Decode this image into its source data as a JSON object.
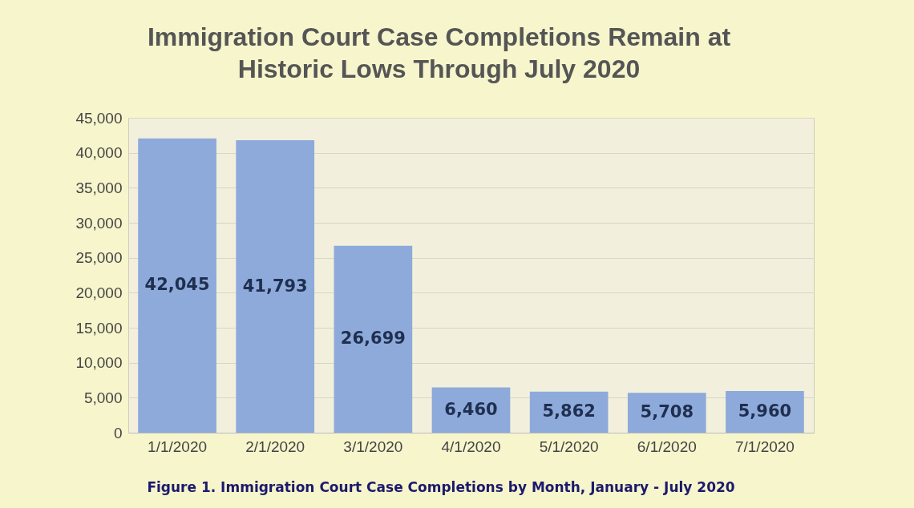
{
  "chart_data": {
    "type": "bar",
    "title": [
      "Immigration Court Case Completions Remain at",
      "Historic Lows Through July 2020"
    ],
    "categories": [
      "1/1/2020",
      "2/1/2020",
      "3/1/2020",
      "4/1/2020",
      "5/1/2020",
      "6/1/2020",
      "7/1/2020"
    ],
    "values": [
      42045,
      41793,
      26699,
      6460,
      5862,
      5708,
      5960
    ],
    "color": "#8eaadb",
    "value_labels": [
      "42,045",
      "41,793",
      "26,699",
      "6,460",
      "5,862",
      "5,708",
      "5,960"
    ],
    "ylim": [
      0,
      45000
    ],
    "yticks": [
      0,
      {
        "value": 5000,
        "label": "5,000"
      },
      {
        "value": 10000,
        "label": "10,000"
      },
      {
        "value": 15000,
        "label": "15,000"
      },
      {
        "value": 20000,
        "label": "20,000"
      },
      {
        "value": 25000,
        "label": "25,000"
      },
      {
        "value": 30000,
        "label": "30,000"
      },
      {
        "value": 35000,
        "label": "35,000"
      },
      {
        "value": 40000,
        "label": "40,000"
      },
      {
        "value": 45000,
        "label": "45,000"
      }
    ],
    "grid": true,
    "annotations": [
      "Figure 1. Immigration Court Case Completions by Month, January - July 2020"
    ]
  }
}
